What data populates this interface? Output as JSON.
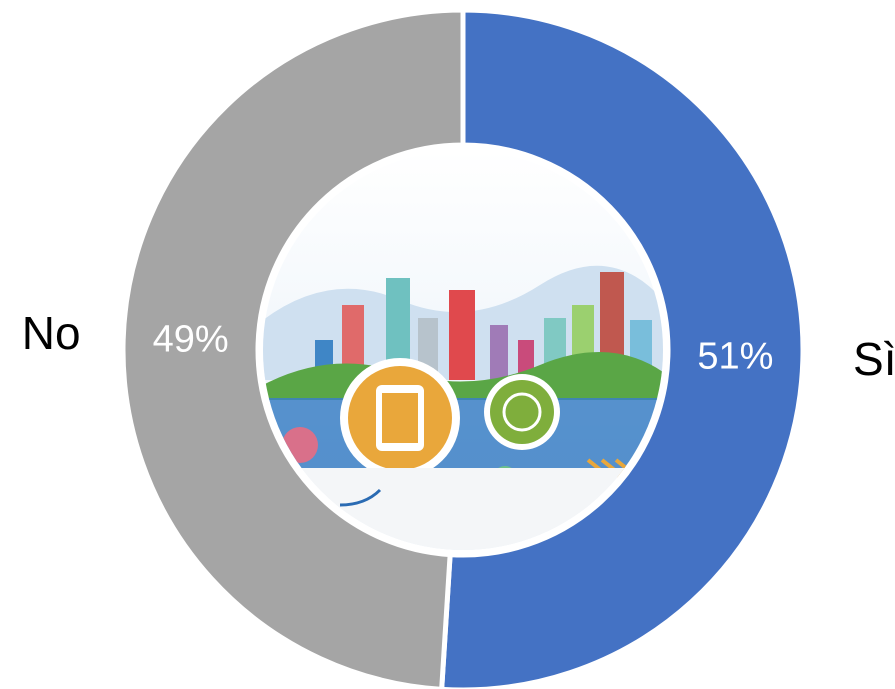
{
  "chart_data": {
    "type": "donut",
    "categories": [
      "Sì",
      "No"
    ],
    "values": [
      51,
      49
    ],
    "value_labels": [
      "51%",
      "49%"
    ],
    "colors": [
      "#4472c4",
      "#a5a5a5"
    ]
  }
}
